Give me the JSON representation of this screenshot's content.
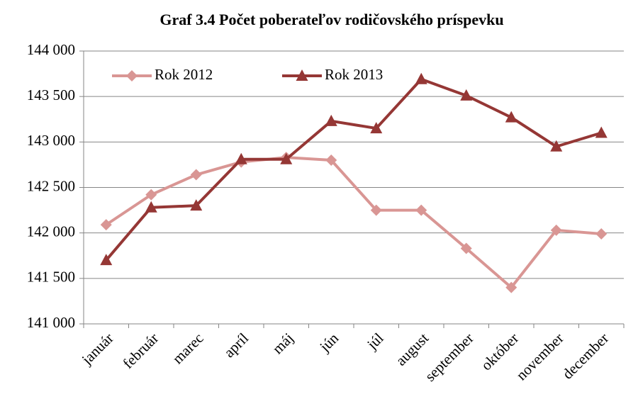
{
  "chart_data": {
    "type": "line",
    "title": "Graf 3.4 Počet poberateľov rodičovského príspevku",
    "categories": [
      "január",
      "február",
      "marec",
      "apríl",
      "máj",
      "jún",
      "júl",
      "august",
      "september",
      "október",
      "november",
      "december"
    ],
    "series": [
      {
        "name": "Rok 2012",
        "color": "#d99694",
        "marker": "diamond",
        "values": [
          142090,
          142420,
          142640,
          142780,
          142830,
          142800,
          142250,
          142250,
          141830,
          141400,
          142030,
          141990
        ]
      },
      {
        "name": "Rok 2013",
        "color": "#953735",
        "marker": "triangle",
        "values": [
          141700,
          142280,
          142300,
          142810,
          142810,
          143230,
          143150,
          143690,
          143510,
          143270,
          142950,
          143100
        ]
      }
    ],
    "ylim": [
      141000,
      144000
    ],
    "yticks": [
      {
        "value": 141000,
        "label": "141 000"
      },
      {
        "value": 141500,
        "label": "141 500"
      },
      {
        "value": 142000,
        "label": "142 000"
      },
      {
        "value": 142500,
        "label": "142 500"
      },
      {
        "value": 143000,
        "label": "143 000"
      },
      {
        "value": 143500,
        "label": "143 500"
      },
      {
        "value": 144000,
        "label": "144 000"
      }
    ],
    "grid": true,
    "legend": "upper left"
  }
}
